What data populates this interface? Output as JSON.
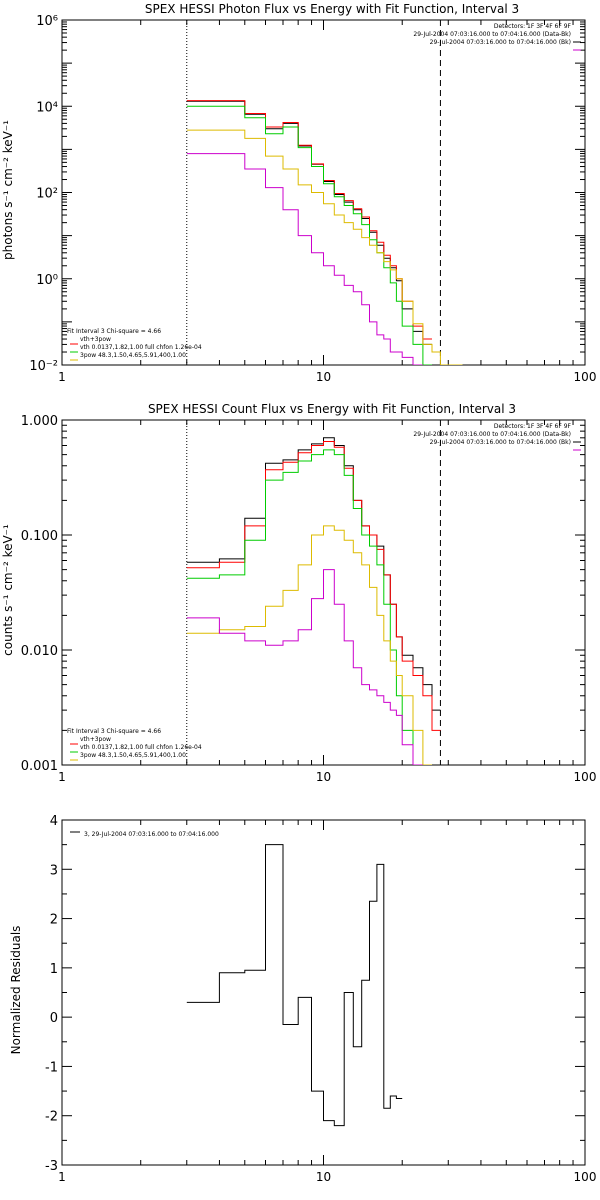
{
  "chart_data": [
    {
      "type": "line",
      "title": "SPEX HESSI Photon Flux vs Energy with Fit Function, Interval 3",
      "xlabel": "",
      "ylabel": "photons s⁻¹ cm⁻² keV⁻¹",
      "xscale": "log",
      "yscale": "log",
      "xlim": [
        1,
        100
      ],
      "ylim": [
        0.01,
        1000000
      ],
      "xticks": [
        1,
        10,
        100
      ],
      "xticklabels": [
        "1",
        "10",
        "100"
      ],
      "yticks": [
        0.01,
        1,
        100,
        10000,
        1000000
      ],
      "yticklabels": [
        "10⁻²",
        "10⁰",
        "10²",
        "10⁴",
        "10⁶"
      ],
      "vlines": [
        {
          "x": 3,
          "style": "dotted"
        },
        {
          "x": 28,
          "style": "dashed"
        }
      ],
      "info_lines": [
        "Detectors: 1F 3F 4F 6F 9F",
        "29-Jul-2004 07:03:16.000 to 07:04:16.000 (Data-Bk)",
        "29-Jul-2004 07:03:16.000 to 07:04:16.000 (Bk)"
      ],
      "info_colors": [
        "#000000",
        "#000000",
        "#cc00cc"
      ],
      "fit_title": "Fit Interval 3   Chi-square = 4.66",
      "legend": [
        {
          "label": "vth+3pow",
          "color": "#ff0000"
        },
        {
          "label": "vth 0.0137,1.82,1.00  full chfon 1.26e-04",
          "color": "#00cc00"
        },
        {
          "label": "3pow 48.3,1.50,4.65,5.91,400,1.00",
          "color": "#ddbb00"
        }
      ],
      "edges": [
        3,
        4,
        5,
        6,
        7,
        8,
        9,
        10,
        11,
        12,
        13,
        14,
        15,
        16,
        17,
        18,
        19,
        20,
        22,
        24,
        26,
        28,
        30,
        32,
        34,
        36,
        38
      ],
      "series": [
        {
          "color": "#000000",
          "values": [
            13000,
            13000,
            6500,
            3000,
            4000,
            1200,
            450,
            180,
            90,
            60,
            40,
            25,
            12,
            6,
            3,
            1.8,
            0.9,
            0.2,
            0.06,
            0.03,
            null,
            null,
            null,
            null,
            null,
            null
          ]
        },
        {
          "color": "#ff0000",
          "values": [
            13500,
            13500,
            6800,
            3300,
            4200,
            1250,
            460,
            190,
            95,
            65,
            42,
            27,
            13,
            7,
            3.5,
            2,
            1,
            0.3,
            0.08,
            0.04,
            null,
            null,
            null,
            null,
            null,
            null
          ]
        },
        {
          "color": "#00cc00",
          "values": [
            10000,
            10000,
            5400,
            2300,
            3300,
            1100,
            400,
            160,
            80,
            50,
            32,
            18,
            8,
            4,
            1.8,
            0.8,
            0.3,
            0.08,
            0.03,
            0.01,
            null,
            null,
            null,
            null,
            null,
            null
          ]
        },
        {
          "color": "#ddbb00",
          "values": [
            2800,
            2800,
            1800,
            700,
            350,
            150,
            100,
            55,
            30,
            20,
            14,
            9,
            6,
            4,
            2.5,
            1.6,
            1,
            0.3,
            0.09,
            0.03,
            0.02,
            0.01,
            0.01,
            0.01,
            null,
            null
          ]
        },
        {
          "color": "#cc00cc",
          "values": [
            800,
            800,
            350,
            130,
            40,
            10,
            4,
            2,
            1.2,
            0.7,
            0.5,
            0.25,
            0.1,
            0.05,
            0.04,
            0.02,
            0.02,
            0.015,
            0.01,
            null,
            null,
            null,
            null,
            null,
            null,
            null
          ]
        }
      ]
    },
    {
      "type": "line",
      "title": "SPEX HESSI Count Flux vs Energy with Fit Function, Interval 3",
      "xlabel": "",
      "ylabel": "counts s⁻¹ cm⁻² keV⁻¹",
      "xscale": "log",
      "yscale": "log",
      "xlim": [
        1,
        100
      ],
      "ylim": [
        0.001,
        1
      ],
      "xticks": [
        1,
        10,
        100
      ],
      "xticklabels": [
        "1",
        "10",
        "100"
      ],
      "yticks": [
        0.001,
        0.01,
        0.1,
        1
      ],
      "yticklabels": [
        "0.001",
        "0.010",
        "0.100",
        "1.000"
      ],
      "vlines": [
        {
          "x": 3,
          "style": "dotted"
        },
        {
          "x": 28,
          "style": "dashed"
        }
      ],
      "info_lines": [
        "Detectors: 1F 3F 4F 6F 9F",
        "29-Jul-2004 07:03:16.000 to 07:04:16.000 (Data-Bk)",
        "29-Jul-2004 07:03:16.000 to 07:04:16.000 (Bk)"
      ],
      "info_colors": [
        "#000000",
        "#000000",
        "#cc00cc"
      ],
      "fit_title": "Fit Interval 3   Chi-square = 4.66",
      "legend": [
        {
          "label": "vth+3pow",
          "color": "#ff0000"
        },
        {
          "label": "vth 0.0137,1.82,1.00  full chfon 1.26e-04",
          "color": "#00cc00"
        },
        {
          "label": "3pow 48.3,1.50,4.65,5.91,400,1.00",
          "color": "#ddbb00"
        }
      ],
      "edges": [
        3,
        4,
        5,
        6,
        7,
        8,
        9,
        10,
        11,
        12,
        13,
        14,
        15,
        16,
        17,
        18,
        19,
        20,
        22,
        24,
        26,
        28,
        30,
        32,
        34,
        36,
        38
      ],
      "series": [
        {
          "color": "#000000",
          "values": [
            0.058,
            0.062,
            0.14,
            0.42,
            0.45,
            0.55,
            0.62,
            0.7,
            0.6,
            0.4,
            0.2,
            0.12,
            0.1,
            0.08,
            0.045,
            0.025,
            0.013,
            0.009,
            0.007,
            0.005,
            0.003,
            null,
            null,
            null,
            null,
            null
          ]
        },
        {
          "color": "#ff0000",
          "values": [
            0.052,
            0.058,
            0.12,
            0.37,
            0.43,
            0.52,
            0.6,
            0.65,
            0.58,
            0.38,
            0.2,
            0.12,
            0.1,
            0.075,
            0.045,
            0.025,
            0.013,
            0.008,
            0.006,
            0.004,
            0.002,
            null,
            null,
            null,
            null,
            null
          ]
        },
        {
          "color": "#00cc00",
          "values": [
            0.042,
            0.045,
            0.09,
            0.3,
            0.35,
            0.44,
            0.5,
            0.55,
            0.5,
            0.33,
            0.17,
            0.1,
            0.08,
            0.055,
            0.025,
            0.01,
            0.004,
            0.002,
            0.001,
            null,
            null,
            null,
            null,
            null,
            null,
            null
          ]
        },
        {
          "color": "#ddbb00",
          "values": [
            0.014,
            0.015,
            0.016,
            0.024,
            0.033,
            0.055,
            0.1,
            0.12,
            0.11,
            0.09,
            0.07,
            0.055,
            0.035,
            0.02,
            0.012,
            0.008,
            0.006,
            0.004,
            0.002,
            0.001,
            null,
            null,
            null,
            null,
            null,
            null
          ]
        },
        {
          "color": "#cc00cc",
          "values": [
            0.019,
            0.014,
            0.012,
            0.011,
            0.012,
            0.015,
            0.028,
            0.05,
            0.025,
            0.012,
            0.007,
            0.005,
            0.0045,
            0.004,
            0.0035,
            0.003,
            0.0027,
            0.0015,
            0.001,
            null,
            null,
            null,
            null,
            null,
            null,
            null
          ]
        }
      ]
    },
    {
      "type": "line",
      "title": "",
      "xlabel": "",
      "ylabel": "Normalized Residuals",
      "xscale": "log",
      "yscale": "linear",
      "xlim": [
        1,
        100
      ],
      "ylim": [
        -3,
        4
      ],
      "xticks": [
        1,
        10,
        100
      ],
      "xticklabels": [
        "1",
        "10",
        "100"
      ],
      "yticks": [
        -3,
        -2,
        -1,
        0,
        1,
        2,
        3,
        4
      ],
      "yticklabels": [
        "-3",
        "-2",
        "-1",
        "0",
        "1",
        "2",
        "3",
        "4"
      ],
      "legend": [
        {
          "label": "3, 29-Jul-2004 07:03:16.000 to 07:04:16.000",
          "color": "#000000"
        }
      ],
      "edges": [
        3,
        4,
        5,
        6,
        7,
        8,
        9,
        10,
        11,
        12,
        13,
        14,
        15,
        16,
        17,
        18,
        19,
        20,
        22,
        24,
        26,
        28
      ],
      "series": [
        {
          "color": "#000000",
          "values": [
            0.3,
            0.9,
            0.95,
            3.5,
            -0.15,
            0.4,
            -1.5,
            -2.1,
            -2.2,
            0.5,
            -0.6,
            0.75,
            2.35,
            3.1,
            -1.85,
            -1.6,
            -1.65,
            null,
            null,
            null,
            null
          ]
        }
      ]
    }
  ]
}
